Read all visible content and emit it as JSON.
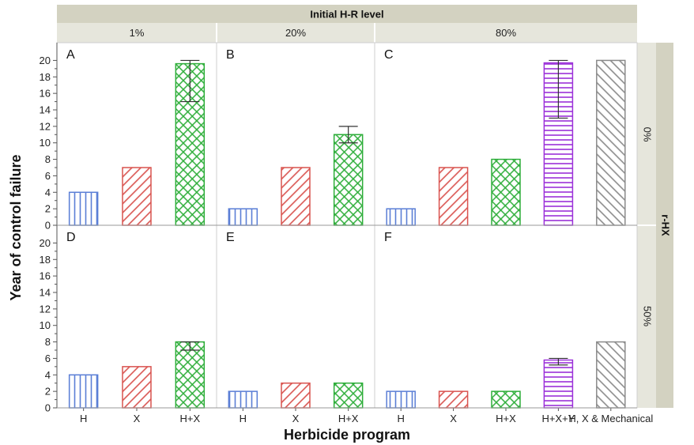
{
  "figure": {
    "top_header": "Initial H-R level",
    "right_header": "r-HX",
    "xlabel": "Herbicide program",
    "ylabel": "Year of control failure",
    "columns": [
      "1%",
      "20%",
      "80%"
    ],
    "rows": [
      "0%",
      "50%"
    ]
  },
  "colors": {
    "H": "#5b7fd6",
    "X": "#d9534f",
    "H+X": "#2eae3a",
    "H+X+Y": "#9b30d9",
    "H, X & Mechanical": "#8a8a8a",
    "strip": "#e6e6dc",
    "strip_dark": "#d3d2c1"
  },
  "chart_data": [
    {
      "panel": "A",
      "type": "bar",
      "initial_hr": "1%",
      "r_hx": "0%",
      "categories": [
        "H",
        "X",
        "H+X"
      ],
      "values": [
        4,
        7,
        19.6
      ],
      "error_low": [
        null,
        null,
        15
      ],
      "error_high": [
        null,
        null,
        20
      ],
      "ylim": [
        0,
        21
      ],
      "yticks": [
        0,
        2,
        4,
        6,
        8,
        10,
        12,
        14,
        16,
        18,
        20
      ]
    },
    {
      "panel": "B",
      "type": "bar",
      "initial_hr": "20%",
      "r_hx": "0%",
      "categories": [
        "H",
        "X",
        "H+X"
      ],
      "values": [
        2,
        7,
        11
      ],
      "error_low": [
        null,
        null,
        10
      ],
      "error_high": [
        null,
        null,
        12
      ],
      "ylim": [
        0,
        21
      ]
    },
    {
      "panel": "C",
      "type": "bar",
      "initial_hr": "80%",
      "r_hx": "0%",
      "categories": [
        "H",
        "X",
        "H+X",
        "H+X+Y",
        "H, X & Mechanical"
      ],
      "values": [
        2,
        7,
        8,
        19.7,
        20
      ],
      "error_low": [
        null,
        null,
        null,
        13,
        null
      ],
      "error_high": [
        null,
        null,
        null,
        20,
        null
      ],
      "ylim": [
        0,
        21
      ]
    },
    {
      "panel": "D",
      "type": "bar",
      "initial_hr": "1%",
      "r_hx": "50%",
      "categories": [
        "H",
        "X",
        "H+X"
      ],
      "values": [
        4,
        5,
        8
      ],
      "error_low": [
        null,
        null,
        7
      ],
      "error_high": [
        null,
        null,
        8
      ],
      "ylim": [
        0,
        21
      ],
      "yticks": [
        0,
        2,
        4,
        6,
        8,
        10,
        12,
        14,
        16,
        18,
        20
      ]
    },
    {
      "panel": "E",
      "type": "bar",
      "initial_hr": "20%",
      "r_hx": "50%",
      "categories": [
        "H",
        "X",
        "H+X"
      ],
      "values": [
        2,
        3,
        3
      ],
      "error_low": [
        null,
        null,
        null
      ],
      "error_high": [
        null,
        null,
        null
      ],
      "ylim": [
        0,
        21
      ]
    },
    {
      "panel": "F",
      "type": "bar",
      "initial_hr": "80%",
      "r_hx": "50%",
      "categories": [
        "H",
        "X",
        "H+X",
        "H+X+Y",
        "H, X & Mechanical"
      ],
      "values": [
        2,
        2,
        2,
        5.8,
        8
      ],
      "error_low": [
        null,
        null,
        null,
        5.2,
        null
      ],
      "error_high": [
        null,
        null,
        null,
        6,
        null
      ],
      "ylim": [
        0,
        21
      ]
    }
  ]
}
